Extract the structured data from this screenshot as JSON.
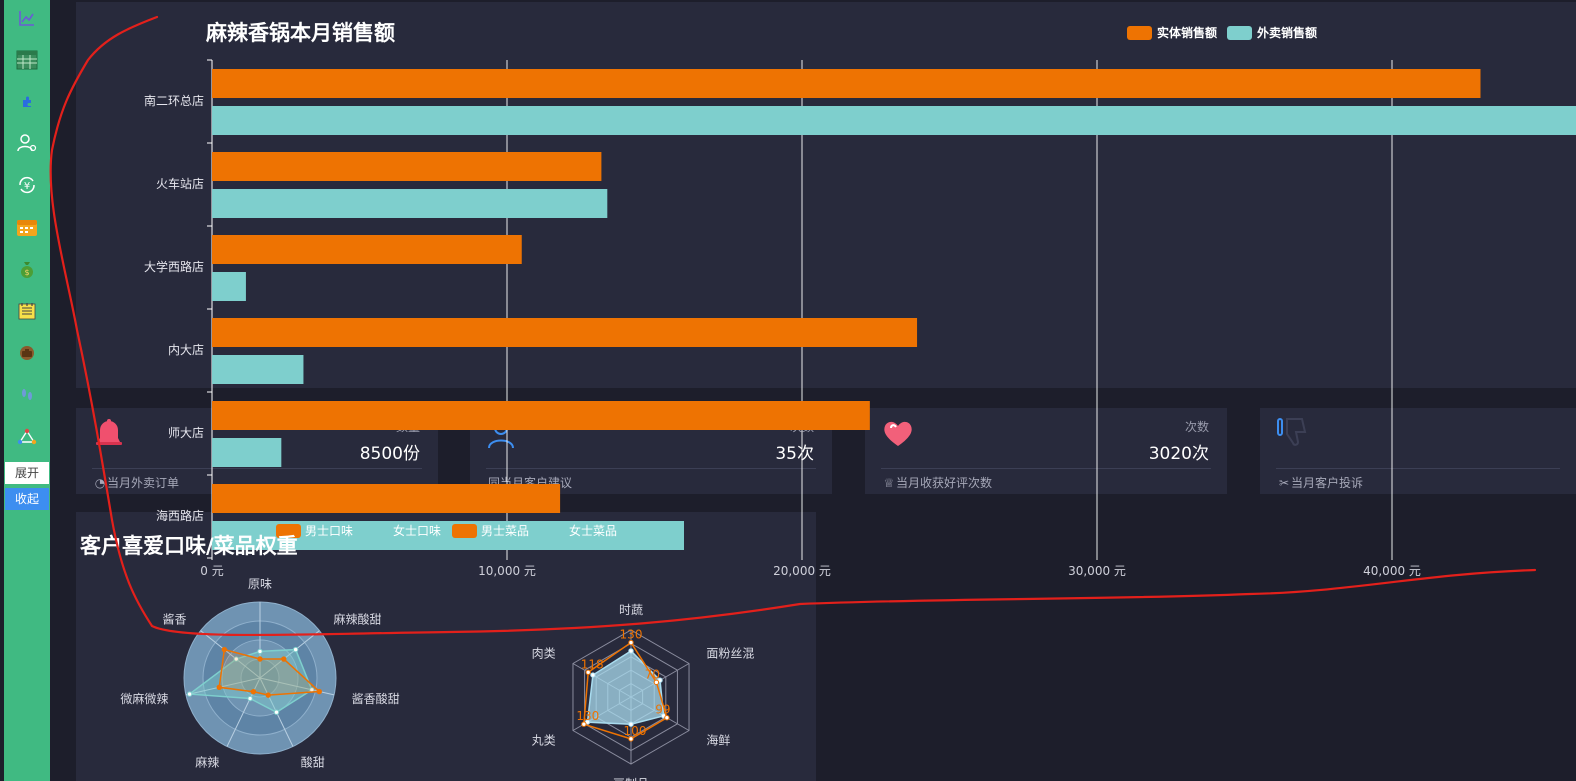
{
  "colors": {
    "sidebar_bg": "#40ba82",
    "page_bg": "#1d1e2b",
    "panel_bg": "#282a3c",
    "bar_offline": "#ee7302",
    "bar_delivery": "#7ecfcd",
    "radar_male": "#ee7302",
    "radar_female": "#7ecfcd",
    "annotation_red": "#e3201b",
    "expand_bg": "#ffffff",
    "collapse_bg": "#3d8ef0"
  },
  "sidebar": {
    "icons": [
      "line-chart-icon",
      "table-icon",
      "puzzle-icon",
      "user-settings-icon",
      "yuan-exchange-icon",
      "calendar-icon",
      "money-bag-icon",
      "notepad-icon",
      "briefcase-icon",
      "footprints-icon",
      "network-icon"
    ],
    "expand_label": "展开",
    "collapse_label": "收起"
  },
  "cards": [
    {
      "sub": "数量",
      "value": "8500份",
      "label": "当月外卖订单",
      "icon": "bell-icon",
      "label_icon": "clock-icon"
    },
    {
      "sub": "次数",
      "value": "35次",
      "label": "同当月客户建议",
      "icon": "user-feedback-icon",
      "label_icon": ""
    },
    {
      "sub": "次数",
      "value": "3020次",
      "label": "当月收获好评次数",
      "icon": "heart-icon",
      "label_icon": "trophy-icon"
    },
    {
      "sub": "",
      "value": "",
      "label": "当月客户投诉",
      "icon": "thumbs-down-icon",
      "label_icon": "scissors-icon"
    }
  ],
  "chart_data": [
    {
      "type": "bar",
      "orientation": "horizontal",
      "title": "麻辣香锅本月销售额",
      "categories": [
        "南二环总店",
        "火车站店",
        "大学西路店",
        "内大店",
        "师大店",
        "海西路店"
      ],
      "series": [
        {
          "name": "实体销售额",
          "values": [
            43000,
            13200,
            10500,
            23900,
            22300,
            11800
          ]
        },
        {
          "name": "外卖销售额",
          "values": [
            46500,
            13400,
            1150,
            3100,
            2350,
            16000
          ]
        }
      ],
      "xticks": [
        "0 元",
        "10,000 元",
        "20,000 元",
        "30,000 元",
        "40,000 元"
      ],
      "xlim": [
        0,
        45000
      ],
      "legend": "top-right"
    },
    {
      "type": "radar",
      "title": "客户喜爱口味/菜品权重",
      "legend": [
        "男士口味",
        "女士口味",
        "男士菜品",
        "女士菜品"
      ],
      "flavor": {
        "indicators": [
          "原味",
          "麻辣酸甜",
          "酱香酸甜",
          "酸甜",
          "麻辣",
          "微麻微辣",
          "酱香"
        ],
        "male": [
          25,
          40,
          80,
          25,
          20,
          55,
          60
        ],
        "female": [
          35,
          60,
          70,
          50,
          30,
          95,
          40
        ],
        "max": 100
      },
      "dishes": {
        "indicators": [
          "时蔬",
          "面粉丝混",
          "海鲜",
          "豆制品",
          "丸类",
          "肉类"
        ],
        "male": [
          130,
          70,
          99,
          100,
          130,
          118
        ],
        "female": [
          110,
          80,
          90,
          65,
          120,
          105
        ],
        "labels": [
          "130",
          "70",
          "99",
          "100",
          "130",
          "118"
        ],
        "max": 160
      }
    }
  ]
}
